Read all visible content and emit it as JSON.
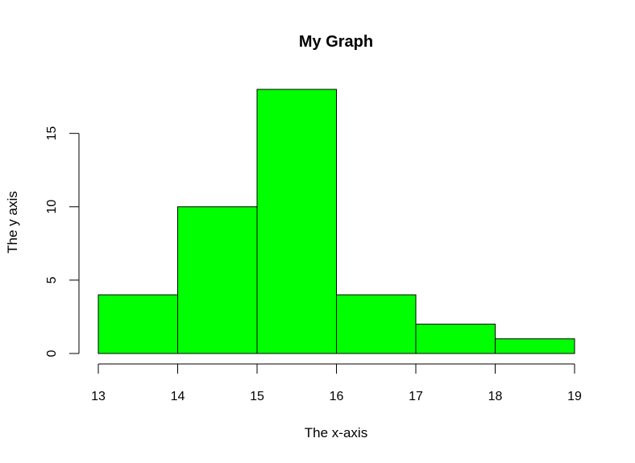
{
  "chart_data": {
    "type": "bar",
    "subtype": "histogram",
    "title": "My Graph",
    "xlabel": "The x-axis",
    "ylabel": "The y axis",
    "bins": [
      {
        "from": 13,
        "to": 14,
        "count": 4
      },
      {
        "from": 14,
        "to": 15,
        "count": 10
      },
      {
        "from": 15,
        "to": 16,
        "count": 18
      },
      {
        "from": 16,
        "to": 17,
        "count": 4
      },
      {
        "from": 17,
        "to": 18,
        "count": 2
      },
      {
        "from": 18,
        "to": 19,
        "count": 1
      }
    ],
    "x_ticks": [
      13,
      14,
      15,
      16,
      17,
      18,
      19
    ],
    "y_ticks": [
      0,
      5,
      10,
      15
    ],
    "xlim": [
      13,
      19
    ],
    "ylim": [
      0,
      18
    ],
    "bar_color": "#00ff00",
    "border_color": "#000000",
    "grid": false,
    "legend": false
  }
}
